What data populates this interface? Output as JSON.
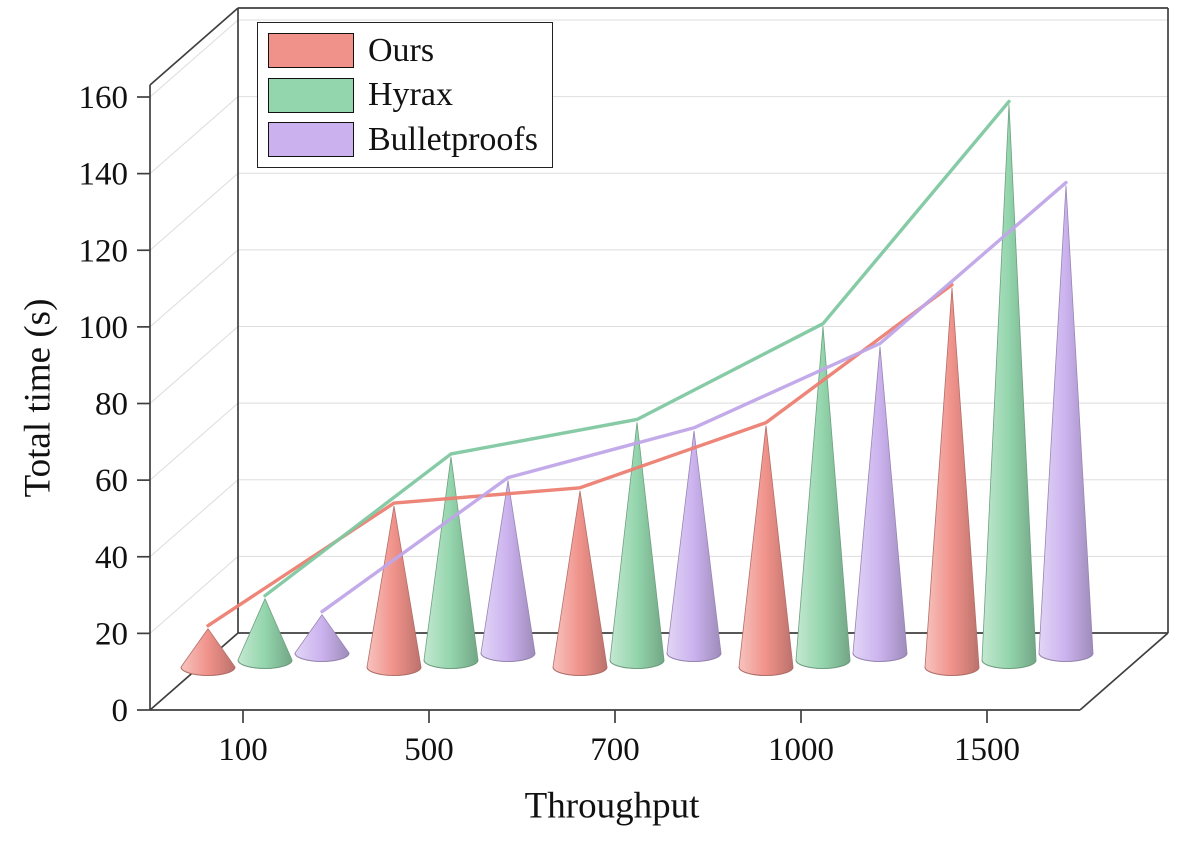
{
  "chart_data": {
    "type": "3d-cone-bars-with-lines",
    "title": "",
    "xlabel": "Throughput",
    "ylabel": "Total time (s)",
    "categories": [
      "100",
      "500",
      "700",
      "1000",
      "1500"
    ],
    "y_ticks": [
      0,
      20,
      40,
      60,
      80,
      100,
      120,
      140,
      160
    ],
    "ylim": [
      0,
      160
    ],
    "grid": true,
    "legend_position": "top-left",
    "background": "#ffffff",
    "frame_color": "#3f3f3f",
    "grid_color": "#dedede",
    "series": [
      {
        "name": "Ours",
        "fill": "#F0928A",
        "line": "#EC7E72",
        "values": [
          10,
          42,
          46,
          63,
          99
        ]
      },
      {
        "name": "Hyrax",
        "fill": "#93D5AC",
        "line": "#7FC8A1",
        "values": [
          16,
          53,
          62,
          87,
          145
        ]
      },
      {
        "name": "Bulletproofs",
        "fill": "#CBB2EE",
        "line": "#C0A5E8",
        "values": [
          10,
          45,
          58,
          80,
          122
        ]
      }
    ]
  }
}
